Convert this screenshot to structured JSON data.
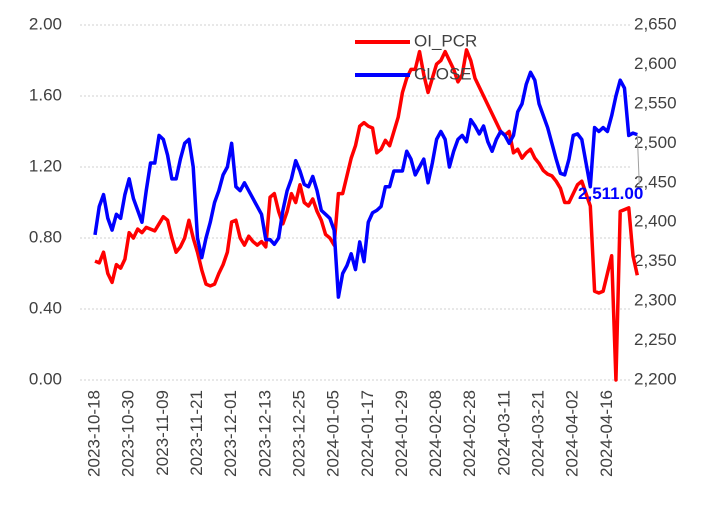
{
  "chart_data": {
    "type": "line",
    "categories": [
      "2023-10-18",
      null,
      null,
      null,
      null,
      null,
      null,
      null,
      "2023-10-30",
      null,
      null,
      null,
      null,
      null,
      null,
      null,
      "2023-11-09",
      null,
      null,
      null,
      null,
      null,
      null,
      null,
      "2023-11-21",
      null,
      null,
      null,
      null,
      null,
      null,
      null,
      "2023-12-01",
      null,
      null,
      null,
      null,
      null,
      null,
      null,
      "2023-12-13",
      null,
      null,
      null,
      null,
      null,
      null,
      null,
      "2023-12-25",
      null,
      null,
      null,
      null,
      null,
      null,
      null,
      "2024-01-05",
      null,
      null,
      null,
      null,
      null,
      null,
      null,
      "2024-01-17",
      null,
      null,
      null,
      null,
      null,
      null,
      null,
      "2024-01-29",
      null,
      null,
      null,
      null,
      null,
      null,
      null,
      "2024-02-08",
      null,
      null,
      null,
      null,
      null,
      null,
      null,
      "2024-02-28",
      null,
      null,
      null,
      null,
      null,
      null,
      null,
      "2024-03-11",
      null,
      null,
      null,
      null,
      null,
      null,
      null,
      "2024-03-21",
      null,
      null,
      null,
      null,
      null,
      null,
      null,
      "2024-04-02",
      null,
      null,
      null,
      null,
      null,
      null,
      null,
      "2024-04-16",
      null,
      null,
      null,
      null,
      null,
      null,
      null
    ],
    "series": [
      {
        "name": "OI_PCR",
        "color": "#ff0000",
        "values": [
          0.67,
          0.66,
          0.72,
          0.6,
          0.55,
          0.65,
          0.63,
          0.68,
          0.83,
          0.8,
          0.85,
          0.83,
          0.86,
          0.85,
          0.84,
          0.88,
          0.92,
          0.9,
          0.8,
          0.72,
          0.75,
          0.8,
          0.9,
          0.8,
          0.72,
          0.62,
          0.54,
          0.53,
          0.54,
          0.6,
          0.65,
          0.72,
          0.89,
          0.9,
          0.8,
          0.76,
          0.81,
          0.78,
          0.76,
          0.78,
          0.75,
          1.03,
          1.05,
          0.95,
          0.88,
          0.95,
          1.05,
          1.0,
          1.1,
          1.0,
          0.98,
          1.02,
          0.95,
          0.9,
          0.82,
          0.8,
          0.76,
          1.05,
          1.05,
          1.15,
          1.25,
          1.32,
          1.43,
          1.45,
          1.43,
          1.42,
          1.28,
          1.3,
          1.35,
          1.32,
          1.4,
          1.48,
          1.62,
          1.7,
          1.75,
          1.75,
          1.85,
          1.72,
          1.62,
          1.7,
          1.78,
          1.8,
          1.85,
          1.8,
          1.75,
          1.68,
          1.72,
          1.86,
          1.8,
          1.7,
          1.65,
          1.6,
          1.55,
          1.5,
          1.45,
          1.4,
          1.38,
          1.4,
          1.28,
          1.3,
          1.25,
          1.28,
          1.3,
          1.25,
          1.22,
          1.18,
          1.16,
          1.15,
          1.12,
          1.08,
          1.0,
          1.0,
          1.05,
          1.1,
          1.12,
          1.05,
          0.98,
          0.5,
          0.49,
          0.5,
          0.6,
          0.7,
          0.0,
          0.95,
          0.96,
          0.97,
          0.7,
          0.59
        ]
      },
      {
        "name": "CLOSE",
        "color": "#0000ff",
        "axis": "y2",
        "values": [
          2384,
          2420,
          2435,
          2405,
          2390,
          2410,
          2405,
          2435,
          2455,
          2430,
          2415,
          2400,
          2440,
          2475,
          2475,
          2510,
          2505,
          2485,
          2455,
          2455,
          2480,
          2500,
          2505,
          2470,
          2380,
          2355,
          2380,
          2400,
          2425,
          2440,
          2460,
          2470,
          2500,
          2445,
          2440,
          2450,
          2440,
          2430,
          2420,
          2410,
          2378,
          2378,
          2372,
          2380,
          2415,
          2440,
          2455,
          2478,
          2465,
          2448,
          2445,
          2458,
          2440,
          2415,
          2410,
          2405,
          2390,
          2305,
          2335,
          2345,
          2360,
          2340,
          2375,
          2350,
          2400,
          2412,
          2415,
          2420,
          2445,
          2445,
          2465,
          2465,
          2465,
          2490,
          2480,
          2460,
          2470,
          2480,
          2450,
          2475,
          2505,
          2515,
          2505,
          2470,
          2490,
          2505,
          2510,
          2502,
          2530,
          2522,
          2512,
          2522,
          2502,
          2490,
          2505,
          2515,
          2510,
          2500,
          2510,
          2540,
          2550,
          2575,
          2590,
          2580,
          2550,
          2535,
          2520,
          2500,
          2480,
          2462,
          2460,
          2480,
          2510,
          2512,
          2505,
          2475,
          2445,
          2520,
          2515,
          2520,
          2515,
          2535,
          2560,
          2580,
          2570,
          2510,
          2513,
          2511
        ],
        "value_labels": [
          null,
          null,
          null,
          null,
          null,
          null,
          null,
          null,
          null,
          null,
          null,
          null,
          null,
          null,
          null,
          null,
          null,
          null,
          null,
          null,
          null,
          null,
          null,
          null,
          null,
          null,
          null,
          null,
          null,
          null,
          null,
          null,
          null,
          null,
          null,
          null,
          null,
          null,
          null,
          null,
          null,
          null,
          null,
          null,
          null,
          null,
          null,
          null,
          null,
          null,
          null,
          null,
          null,
          null,
          null,
          null,
          null,
          null,
          null,
          null,
          null,
          null,
          null,
          null,
          null,
          null,
          null,
          null,
          null,
          null,
          null,
          null,
          null,
          null,
          null,
          null,
          null,
          null,
          null,
          null,
          null,
          null,
          null,
          null,
          null,
          null,
          null,
          null,
          null,
          null,
          null,
          null,
          null,
          null,
          null,
          null,
          null,
          null,
          null,
          null,
          null,
          null,
          null,
          null,
          null,
          null,
          null,
          null,
          null,
          null,
          null,
          null,
          null,
          null,
          null,
          null,
          null,
          null,
          null,
          null,
          null,
          null,
          null,
          null,
          null,
          null,
          null,
          "2,511.00"
        ]
      }
    ],
    "ylim": [
      0,
      2
    ],
    "yticks": [
      {
        "value": 0,
        "label": "0.00"
      },
      {
        "value": 0.4,
        "label": "0.40"
      },
      {
        "value": 0.8,
        "label": "0.80"
      },
      {
        "value": 1.2,
        "label": "1.20"
      },
      {
        "value": 1.6,
        "label": "1.60"
      },
      {
        "value": 2,
        "label": "2.00"
      }
    ],
    "y2lim": [
      2200,
      2650
    ],
    "y2ticks": [
      {
        "value": 2200,
        "label": "2,200"
      },
      {
        "value": 2250,
        "label": "2,250"
      },
      {
        "value": 2300,
        "label": "2,300"
      },
      {
        "value": 2350,
        "label": "2,350"
      },
      {
        "value": 2400,
        "label": "2,400"
      },
      {
        "value": 2450,
        "label": "2,450"
      },
      {
        "value": 2500,
        "label": "2,500"
      },
      {
        "value": 2550,
        "label": "2,550"
      },
      {
        "value": 2600,
        "label": "2,600"
      },
      {
        "value": 2650,
        "label": "2,650"
      }
    ],
    "grid": true,
    "legend": "top"
  }
}
